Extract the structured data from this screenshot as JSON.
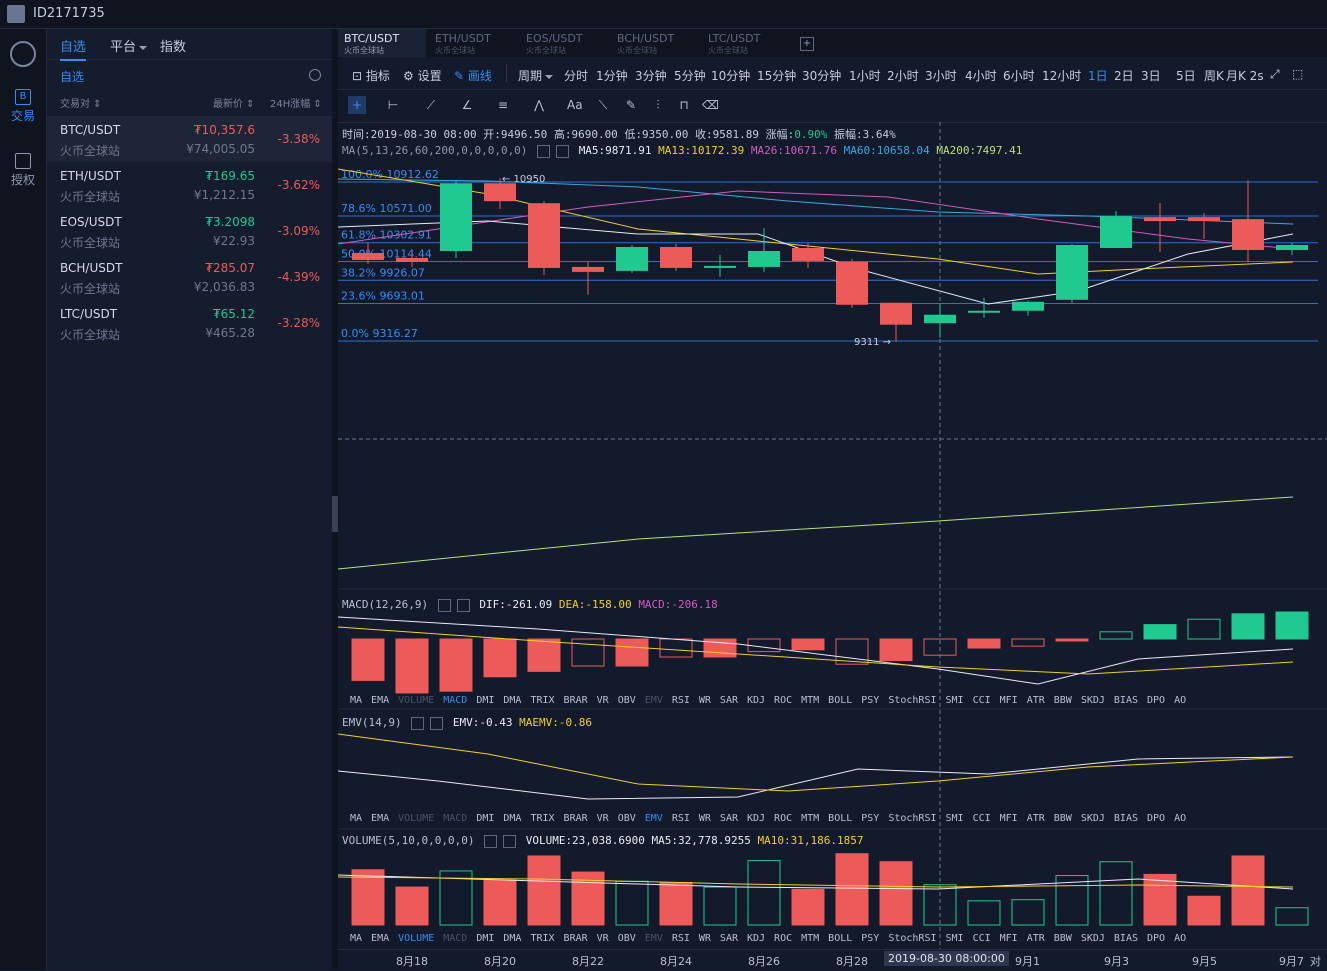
{
  "user": {
    "id": "ID2171735"
  },
  "nav": {
    "trade": "交易",
    "auth": "授权"
  },
  "sidebar": {
    "tabs": [
      "自选",
      "平台",
      "指数"
    ],
    "sublabel": "自选",
    "columns": {
      "pair": "交易对",
      "price": "最新价",
      "change": "24H涨幅"
    },
    "rows": [
      {
        "pair": "BTC/USDT",
        "exchange": "火币全球站",
        "price": "₮10,357.6",
        "cny": "¥74,005.05",
        "change": "-3.38%",
        "dir": "dn"
      },
      {
        "pair": "ETH/USDT",
        "exchange": "火币全球站",
        "price": "₮169.65",
        "cny": "¥1,212.15",
        "change": "-3.62%",
        "dir": "up"
      },
      {
        "pair": "EOS/USDT",
        "exchange": "火币全球站",
        "price": "₮3.2098",
        "cny": "¥22.93",
        "change": "-3.09%",
        "dir": "up"
      },
      {
        "pair": "BCH/USDT",
        "exchange": "火币全球站",
        "price": "₮285.07",
        "cny": "¥2,036.83",
        "change": "-4.39%",
        "dir": "dn"
      },
      {
        "pair": "LTC/USDT",
        "exchange": "火币全球站",
        "price": "₮65.12",
        "cny": "¥465.28",
        "change": "-3.28%",
        "dir": "up"
      }
    ]
  },
  "symtabs": [
    {
      "name": "BTC/USDT",
      "exchange": "火币全球站"
    },
    {
      "name": "ETH/USDT",
      "exchange": "火币全球站"
    },
    {
      "name": "EOS/USDT",
      "exchange": "火币全球站"
    },
    {
      "name": "BCH/USDT",
      "exchange": "火币全球站"
    },
    {
      "name": "LTC/USDT",
      "exchange": "火币全球站"
    }
  ],
  "toolbar": {
    "indicator": "指标",
    "settings": "设置",
    "draw": "画线",
    "period": "周期",
    "periods": [
      "分时",
      "1分钟",
      "3分钟",
      "5分钟",
      "10分钟",
      "15分钟",
      "30分钟",
      "1小时",
      "2小时",
      "3小时",
      "4小时",
      "6小时",
      "12小时",
      "1日",
      "2日",
      "3日",
      "5日",
      "周K",
      "月K 2s"
    ],
    "active_period": "1日",
    "text_tool": "Aa"
  },
  "ohlc": {
    "time": "时间:2019-08-30 08:00",
    "open": "开:9496.50",
    "high": "高:9690.00",
    "low": "低:9350.00",
    "close": "收:9581.89",
    "change": "涨幅:",
    "change_val": "0.90%",
    "amp": "振幅:3.64%"
  },
  "ma": {
    "label": "MA(5,13,26,60,200,0,0,0,0,0)",
    "ma5": "MA5:9871.91",
    "ma13": "MA13:10172.39",
    "ma26": "MA26:10671.76",
    "ma60": "MA60:10658.04",
    "ma200": "MA200:7497.41"
  },
  "fib": [
    {
      "label": "100.0% 10912.62",
      "price": 10912.62
    },
    {
      "label": "78.6% 10571.00",
      "price": 10571.0
    },
    {
      "label": "61.8% 10302.91",
      "price": 10302.91
    },
    {
      "label": "50.0% 10114.44",
      "price": 10114.44
    },
    {
      "label": "38.2% 9926.07",
      "price": 9926.07
    },
    {
      "label": "23.6% 9693.01",
      "price": 9693.01
    },
    {
      "label": "0.0% 9316.27",
      "price": 9316.27
    }
  ],
  "annotations": {
    "high": "← 10950",
    "low": "9311 →"
  },
  "macd": {
    "label": "MACD(12,26,9)",
    "dif": "DIF:-261.09",
    "dea": "DEA:-158.00",
    "macd": "MACD:-206.18"
  },
  "emv": {
    "label": "EMV(14,9)",
    "emv": "EMV:-0.43",
    "maemv": "MAEMV:-0.86"
  },
  "volume": {
    "label": "VOLUME(5,10,0,0,0,0)",
    "volume": "VOLUME:23,038.6900",
    "ma5": "MA5:32,778.9255",
    "ma10": "MA10:31,186.1857"
  },
  "indicators": [
    "MA",
    "EMA",
    "VOLUME",
    "MACD",
    "DMI",
    "DMA",
    "TRIX",
    "BRAR",
    "VR",
    "OBV",
    "EMV",
    "RSI",
    "WR",
    "SAR",
    "KDJ",
    "ROC",
    "MTM",
    "BOLL",
    "PSY",
    "StochRSI",
    "SMI",
    "CCI",
    "MFI",
    "ATR",
    "BBW",
    "SKDJ",
    "BIAS",
    "DPO",
    "AO"
  ],
  "xaxis": {
    "labels": [
      "8月18",
      "8月20",
      "8月22",
      "8月24",
      "8月26",
      "8月28",
      "9月1",
      "9月3",
      "9月5",
      "9月7"
    ],
    "cursor": "2019-08-30 08:00:00",
    "tail": "对"
  },
  "chart_data": {
    "type": "candlestick",
    "candles": [
      {
        "o": 10200,
        "h": 10300,
        "l": 10090,
        "c": 10130
      },
      {
        "o": 10150,
        "h": 10200,
        "l": 10060,
        "c": 10110
      },
      {
        "o": 10220,
        "h": 10920,
        "l": 10150,
        "c": 10900
      },
      {
        "o": 10900,
        "h": 10950,
        "l": 10640,
        "c": 10720
      },
      {
        "o": 10700,
        "h": 10720,
        "l": 9980,
        "c": 10050
      },
      {
        "o": 10060,
        "h": 10110,
        "l": 9780,
        "c": 10010
      },
      {
        "o": 10020,
        "h": 10280,
        "l": 10000,
        "c": 10260
      },
      {
        "o": 10260,
        "h": 10290,
        "l": 10020,
        "c": 10050
      },
      {
        "o": 10060,
        "h": 10180,
        "l": 9960,
        "c": 10070
      },
      {
        "o": 10060,
        "h": 10450,
        "l": 10010,
        "c": 10220
      },
      {
        "o": 10250,
        "h": 10300,
        "l": 10050,
        "c": 10120
      },
      {
        "o": 10110,
        "h": 10140,
        "l": 9650,
        "c": 9680
      },
      {
        "o": 9700,
        "h": 9700,
        "l": 9310,
        "c": 9480
      },
      {
        "o": 9495,
        "h": 9690,
        "l": 9350,
        "c": 9580
      },
      {
        "o": 9600,
        "h": 9750,
        "l": 9550,
        "c": 9620
      },
      {
        "o": 9620,
        "h": 9720,
        "l": 9570,
        "c": 9710
      },
      {
        "o": 9730,
        "h": 10290,
        "l": 9700,
        "c": 10280
      },
      {
        "o": 10250,
        "h": 10620,
        "l": 10250,
        "c": 10570
      },
      {
        "o": 10560,
        "h": 10700,
        "l": 10210,
        "c": 10520
      },
      {
        "o": 10560,
        "h": 10600,
        "l": 10340,
        "c": 10520
      },
      {
        "o": 10540,
        "h": 10930,
        "l": 10110,
        "c": 10230
      },
      {
        "o": 10230,
        "h": 10300,
        "l": 10180,
        "c": 10280
      }
    ],
    "macd_hist": [
      -230,
      -300,
      -290,
      -210,
      -180,
      -150,
      -150,
      -100,
      -100,
      -70,
      -60,
      -140,
      -120,
      -90,
      -50,
      -40,
      -10,
      40,
      80,
      110,
      140,
      150
    ],
    "volume": [
      48,
      33,
      47,
      39,
      60,
      46,
      38,
      37,
      33,
      56,
      31,
      62,
      55,
      35,
      21,
      22,
      43,
      55,
      44,
      25,
      60,
      15
    ]
  }
}
